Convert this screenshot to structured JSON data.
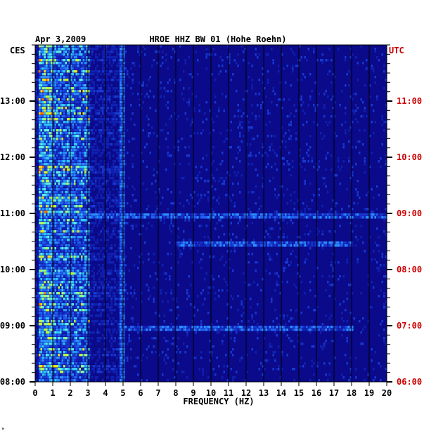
{
  "chart_data": {
    "type": "heatmap",
    "title": "HROE HHZ BW 01 (Hohe Roehn)",
    "date": "Apr 3,2009",
    "xlabel": "FREQUENCY (HZ)",
    "x_ticks": [
      0,
      1,
      2,
      3,
      4,
      5,
      6,
      7,
      8,
      9,
      10,
      11,
      12,
      13,
      14,
      15,
      16,
      17,
      18,
      19,
      20
    ],
    "xlim": [
      0,
      20
    ],
    "left_axis": {
      "label": "CES",
      "ticks": [
        "13:00",
        "12:00",
        "11:00",
        "10:00",
        "09:00",
        "08:00"
      ],
      "range": [
        "08:00",
        "13:50"
      ]
    },
    "right_axis": {
      "label": "UTC",
      "ticks": [
        "11:00",
        "10:00",
        "09:00",
        "08:00",
        "07:00",
        "06:00"
      ],
      "range": [
        "06:00",
        "11:50"
      ]
    },
    "features": [
      {
        "name": "microseismic band",
        "freq_hz": [
          0.2,
          3.0
        ],
        "intensity": "high"
      },
      {
        "name": "narrow line",
        "freq_hz": 4.9,
        "intensity": "medium"
      },
      {
        "name": "broadband event",
        "time_ces": "11:00",
        "freq_hz": [
          3,
          20
        ]
      },
      {
        "name": "broadband event",
        "time_ces": "10:30",
        "freq_hz": [
          8,
          18
        ]
      },
      {
        "name": "broadband event",
        "time_ces": "09:00",
        "freq_hz": [
          5,
          18
        ]
      }
    ],
    "colors": {
      "background": "#0a0a8a",
      "grid": "#000000",
      "left_axis": "#000000",
      "right_axis": "#cc0000"
    }
  },
  "footer": {
    "mark": "ᴹ"
  }
}
